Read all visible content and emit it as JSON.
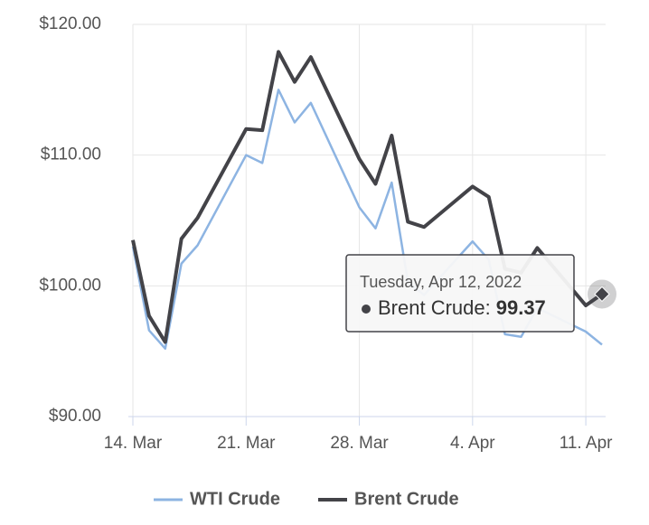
{
  "chart_data": {
    "type": "line",
    "x": [
      "2022-03-14",
      "2022-03-15",
      "2022-03-16",
      "2022-03-17",
      "2022-03-18",
      "2022-03-21",
      "2022-03-22",
      "2022-03-23",
      "2022-03-24",
      "2022-03-25",
      "2022-03-28",
      "2022-03-29",
      "2022-03-30",
      "2022-03-31",
      "2022-04-01",
      "2022-04-04",
      "2022-04-05",
      "2022-04-06",
      "2022-04-07",
      "2022-04-08",
      "2022-04-11",
      "2022-04-12"
    ],
    "series": [
      {
        "name": "WTI Crude",
        "color": "#8db4e2",
        "values": [
          103.0,
          96.6,
          95.2,
          101.7,
          103.1,
          110.0,
          109.4,
          115.0,
          112.5,
          114.0,
          106.0,
          104.4,
          107.9,
          100.3,
          99.3,
          103.4,
          102.0,
          96.3,
          96.1,
          98.3,
          96.5,
          95.5
        ]
      },
      {
        "name": "Brent Crude",
        "color": "#434348",
        "values": [
          103.5,
          97.7,
          95.7,
          103.6,
          105.2,
          112.0,
          111.9,
          117.9,
          115.6,
          117.5,
          109.7,
          107.8,
          111.5,
          104.9,
          104.5,
          107.6,
          106.8,
          101.3,
          101.0,
          102.9,
          98.5,
          99.37
        ]
      }
    ],
    "xlim": [
      "2022-03-14",
      "2022-04-12"
    ],
    "xticks": [
      {
        "value": "2022-03-14",
        "label": "14. Mar"
      },
      {
        "value": "2022-03-21",
        "label": "21. Mar"
      },
      {
        "value": "2022-03-28",
        "label": "28. Mar"
      },
      {
        "value": "2022-04-04",
        "label": "4. Apr"
      },
      {
        "value": "2022-04-11",
        "label": "11. Apr"
      }
    ],
    "ylim": [
      90,
      120
    ],
    "yticks": [
      {
        "value": 90,
        "label": "$90.00"
      },
      {
        "value": 100,
        "label": "$100.00"
      },
      {
        "value": 110,
        "label": "$110.00"
      },
      {
        "value": 120,
        "label": "$120.00"
      }
    ],
    "grid": true,
    "tooltip": {
      "title": "Tuesday, Apr 12, 2022",
      "label": "Brent Crude:"
    }
  }
}
